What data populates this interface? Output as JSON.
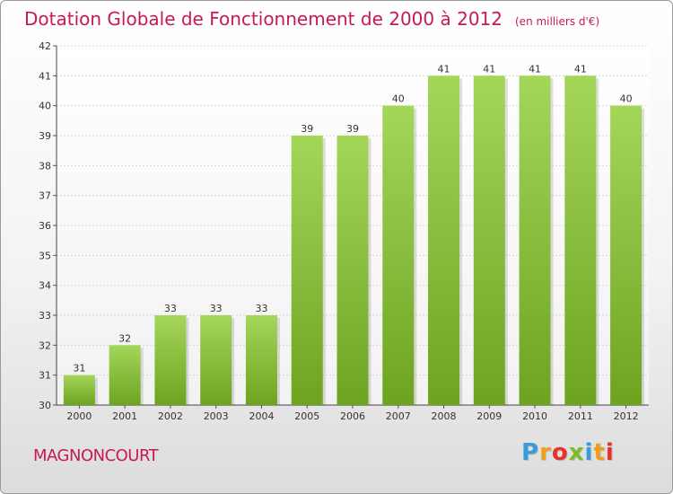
{
  "title": "Dotation Globale de Fonctionnement de 2000 à 2012",
  "unit": "(en milliers d'€)",
  "commune": "MAGNONCOURT",
  "logo": {
    "letters": [
      "P",
      "r",
      "o",
      "x",
      "i",
      "t",
      "i"
    ],
    "colors": [
      "#3b9ad9",
      "#f29b1d",
      "#e5322d",
      "#7cbb2a",
      "#3b9ad9",
      "#f29b1d",
      "#e5322d"
    ]
  },
  "colors": {
    "bar_light": "#a4d65a",
    "bar_dark": "#6ea320",
    "title": "#c8185a"
  },
  "chart_data": {
    "type": "bar",
    "title": "Dotation Globale de Fonctionnement de 2000 à 2012",
    "categories": [
      "2000",
      "2001",
      "2002",
      "2003",
      "2004",
      "2005",
      "2006",
      "2007",
      "2008",
      "2009",
      "2010",
      "2011",
      "2012"
    ],
    "values": [
      31,
      32,
      33,
      33,
      33,
      39,
      39,
      40,
      41,
      41,
      41,
      41,
      40
    ],
    "ylim": [
      30,
      42
    ],
    "yticks": [
      30,
      31,
      32,
      33,
      34,
      35,
      36,
      37,
      38,
      39,
      40,
      41,
      42
    ],
    "grid": true,
    "xlabel": "",
    "ylabel": ""
  }
}
